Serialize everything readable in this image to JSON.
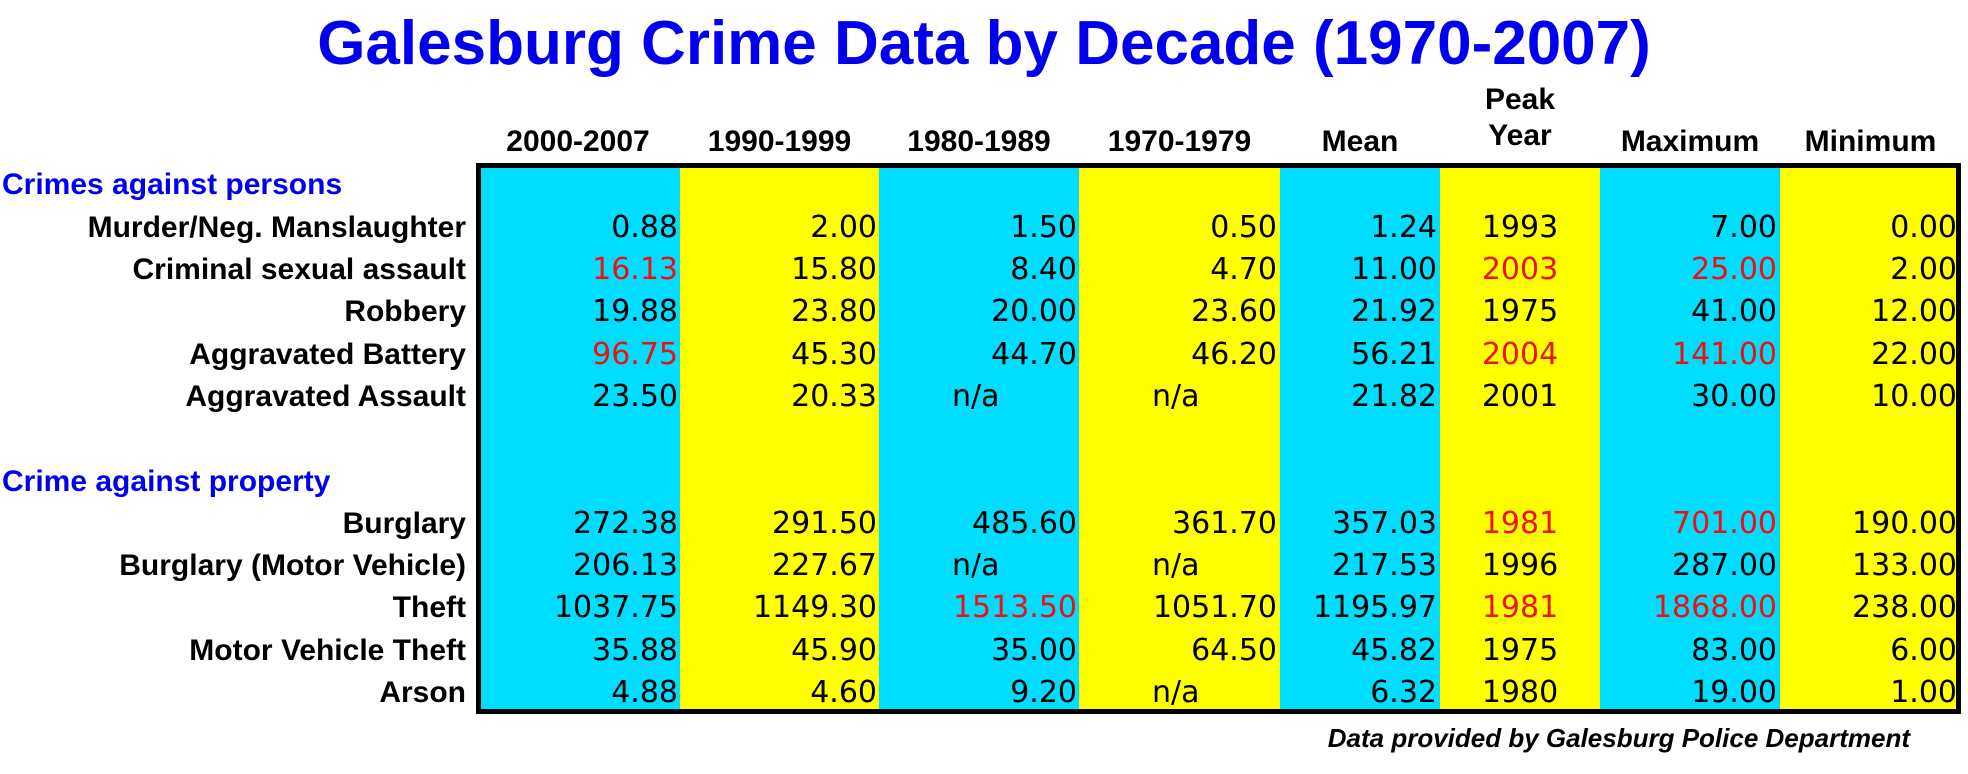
{
  "chart_data": {
    "type": "table",
    "title": "Galesburg Crime Data by Decade (1970-2007)",
    "columns": [
      "2000-2007",
      "1990-1999",
      "1980-1989",
      "1970-1979",
      "Mean",
      "Peak Year",
      "Maximum",
      "Minimum"
    ],
    "column_header_lines": {
      "peak_year": [
        "Peak",
        "Year"
      ]
    },
    "band_colors": [
      "#00ddff",
      "#ffff00"
    ],
    "highlight_color": "#ee1111",
    "sections": [
      {
        "title": "Crimes against persons",
        "rows": [
          {
            "label": "Murder/Neg. Manslaughter",
            "values": [
              "0.88",
              "2.00",
              "1.50",
              "0.50",
              "1.24",
              "1993",
              "7.00",
              "0.00"
            ],
            "highlight": []
          },
          {
            "label": "Criminal sexual assault",
            "values": [
              "16.13",
              "15.80",
              "8.40",
              "4.70",
              "11.00",
              "2003",
              "25.00",
              "2.00"
            ],
            "highlight": [
              0,
              5,
              6
            ]
          },
          {
            "label": "Robbery",
            "values": [
              "19.88",
              "23.80",
              "20.00",
              "23.60",
              "21.92",
              "1975",
              "41.00",
              "12.00"
            ],
            "highlight": []
          },
          {
            "label": "Aggravated Battery",
            "values": [
              "96.75",
              "45.30",
              "44.70",
              "46.20",
              "56.21",
              "2004",
              "141.00",
              "22.00"
            ],
            "highlight": [
              0,
              5,
              6
            ]
          },
          {
            "label": "Aggravated Assault",
            "values": [
              "23.50",
              "20.33",
              "n/a",
              "n/a",
              "21.82",
              "2001",
              "30.00",
              "10.00"
            ],
            "highlight": []
          }
        ]
      },
      {
        "title": "Crime against property",
        "rows": [
          {
            "label": "Burglary",
            "values": [
              "272.38",
              "291.50",
              "485.60",
              "361.70",
              "357.03",
              "1981",
              "701.00",
              "190.00"
            ],
            "highlight": [
              5,
              6
            ]
          },
          {
            "label": "Burglary (Motor Vehicle)",
            "values": [
              "206.13",
              "227.67",
              "n/a",
              "n/a",
              "217.53",
              "1996",
              "287.00",
              "133.00"
            ],
            "highlight": []
          },
          {
            "label": "Theft",
            "values": [
              "1037.75",
              "1149.30",
              "1513.50",
              "1051.70",
              "1195.97",
              "1981",
              "1868.00",
              "238.00"
            ],
            "highlight": [
              2,
              5,
              6
            ]
          },
          {
            "label": "Motor Vehicle Theft",
            "values": [
              "35.88",
              "45.90",
              "35.00",
              "64.50",
              "45.82",
              "1975",
              "83.00",
              "6.00"
            ],
            "highlight": []
          },
          {
            "label": "Arson",
            "values": [
              "4.88",
              "4.60",
              "9.20",
              "n/a",
              "6.32",
              "1980",
              "19.00",
              "1.00"
            ],
            "highlight": []
          }
        ]
      }
    ],
    "footer": "Data provided by Galesburg Police Department"
  }
}
